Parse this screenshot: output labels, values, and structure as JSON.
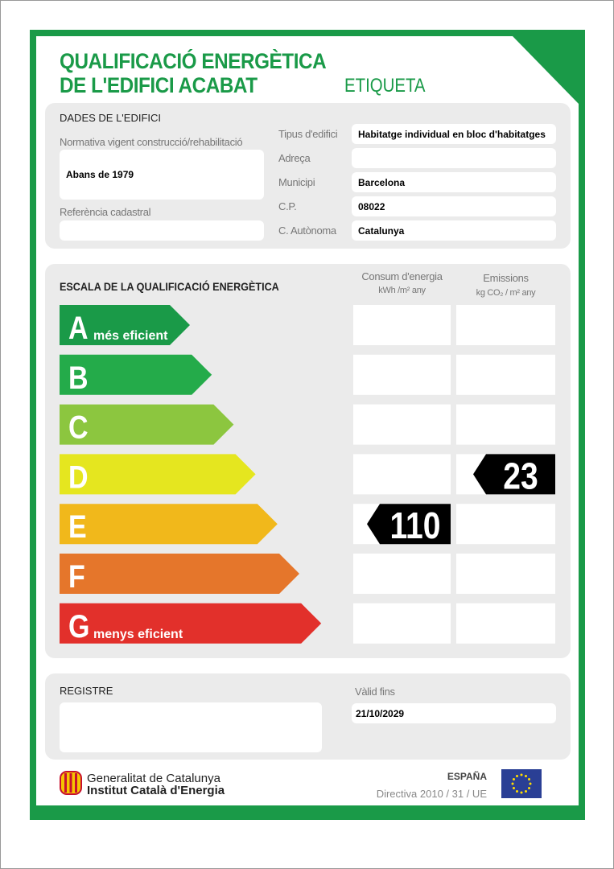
{
  "header": {
    "title_line1": "QUALIFICACIÓ ENERGÈTICA",
    "title_line2": "DE L'EDIFICI ACABAT",
    "label": "ETIQUETA"
  },
  "building": {
    "heading": "DADES DE L'EDIFICI",
    "left_fields": [
      {
        "label": "Normativa vigent construcció/rehabilitació",
        "value": "Abans de 1979"
      },
      {
        "label": "Referència cadastral"
      }
    ],
    "right_fields": [
      {
        "label": "Tipus d'edifici",
        "value": "Habitatge individual en bloc d'habitatges"
      },
      {
        "label": "Adreça"
      },
      {
        "label": "Municipi",
        "value": "Barcelona"
      },
      {
        "label": "C.P.",
        "value": "08022"
      },
      {
        "label": "C. Autònoma",
        "value": "Catalunya"
      }
    ]
  },
  "scale": {
    "heading": "ESCALA DE LA QUALIFICACIÓ ENERGÈTICA",
    "energy_column": {
      "title": "Consum d'energia",
      "unit": "kWh /m² any"
    },
    "emissions_column": {
      "title": "Emissions",
      "unit": "kg CO₂ / m² any"
    },
    "classes": [
      {
        "letter": "A",
        "description": "més eficient",
        "color": "#1a9a48"
      },
      {
        "letter": "B",
        "color": "#24ab4a"
      },
      {
        "letter": "C",
        "color": "#8cc63f"
      },
      {
        "letter": "D",
        "color": "#e5e61f",
        "emissions": 23
      },
      {
        "letter": "E",
        "color": "#f1b81b",
        "energy": 110
      },
      {
        "letter": "F",
        "color": "#e5762b"
      },
      {
        "letter": "G",
        "description": "menys eficient",
        "color": "#e2302b"
      }
    ]
  },
  "register": {
    "heading": "REGISTRE",
    "valid_label": "Vàlid fins",
    "valid_value": "21/10/2029"
  },
  "footer": {
    "org_line1": "Generalitat de Catalunya",
    "org_line2": "Institut Català d'Energia",
    "country": "ESPAÑA",
    "directive": "Directiva 2010 / 31 / UE"
  }
}
